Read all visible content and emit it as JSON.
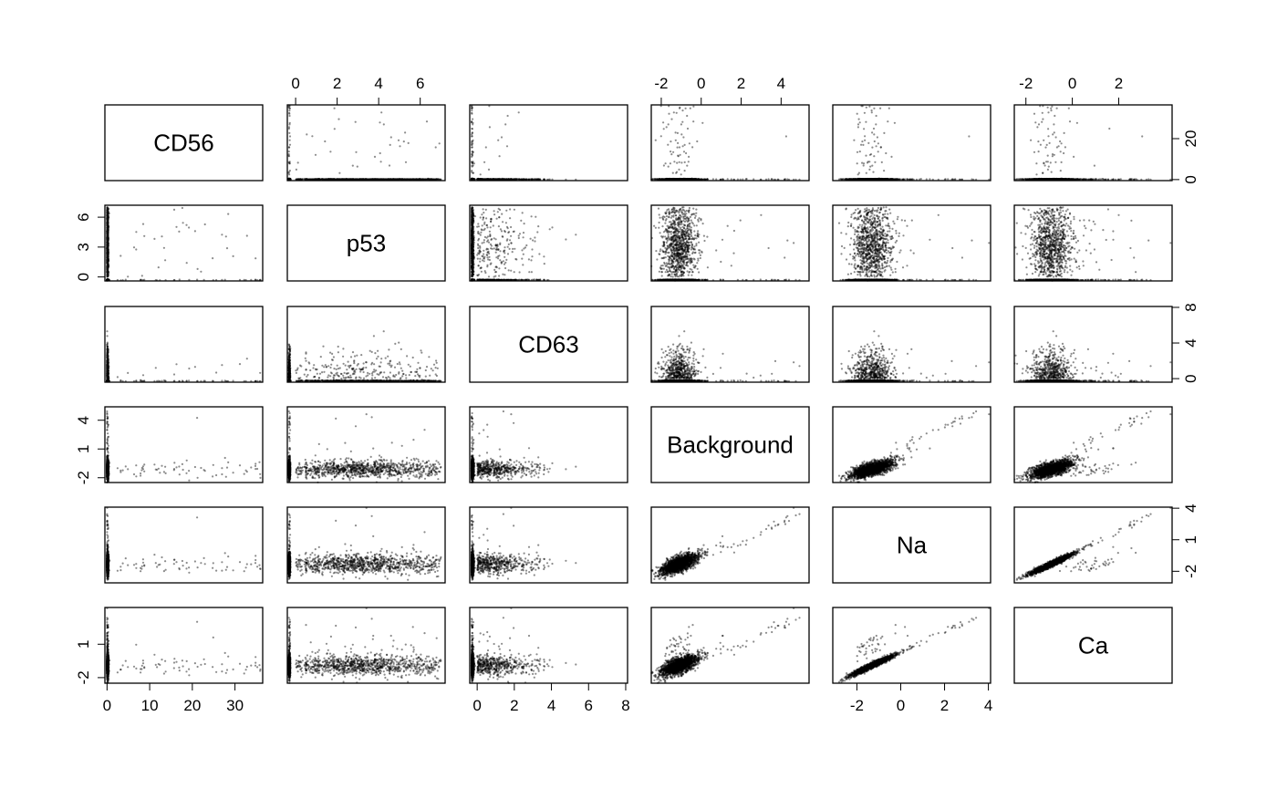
{
  "chart_data": {
    "type": "scatter",
    "subtype": "pairs-matrix",
    "variables": [
      "CD56",
      "p53",
      "CD63",
      "Background",
      "Na",
      "Ca"
    ],
    "axis_ranges": {
      "CD56": [
        -0.5,
        36.5
      ],
      "p53": [
        -0.4,
        7.2
      ],
      "CD63": [
        -0.4,
        8.1
      ],
      "Background": [
        -2.5,
        5.4
      ],
      "Na": [
        -3.1,
        4.1
      ],
      "Ca": [
        -2.5,
        4.3
      ]
    },
    "ticks": {
      "CD56": [
        0,
        10,
        20,
        30
      ],
      "p53": [
        0,
        2,
        4,
        6
      ],
      "CD63": [
        0,
        2,
        4,
        6,
        8
      ],
      "Background": [
        -2,
        0,
        2,
        4
      ],
      "Na": [
        -2,
        0,
        2,
        4
      ],
      "Ca": [
        -2,
        0,
        2
      ]
    },
    "y_ticks": {
      "CD56": [
        0,
        20
      ],
      "p53": [
        0,
        3,
        6
      ],
      "CD63": [
        0,
        4,
        8
      ],
      "Background": [
        -2,
        1,
        4
      ],
      "Na": [
        -2,
        1,
        4
      ],
      "Ca": [
        -2,
        1
      ]
    },
    "axis_label_side": {
      "bottom": [
        "CD56",
        "CD63",
        "Na"
      ],
      "top": [
        "p53",
        "Background",
        "Ca"
      ],
      "left": [
        "p53",
        "Background",
        "Ca"
      ],
      "right": [
        "CD56",
        "CD63",
        "Na"
      ]
    },
    "point_color": "#000000",
    "point_opacity": 0.45,
    "grid": false,
    "n_points_approx": 2000,
    "distributions": {
      "CD56": "mostly 0, sparse tail up to ~36",
      "p53": "large mass at ~-0.3, second cluster 1 to 6.5",
      "CD63": "large mass at ~-0.3, spread up to ~8",
      "Background": "centered near -1, tail to ~5",
      "Na": "centered near -1.3, tail to ~4",
      "Ca": "strongly correlated with Na (r≈0.95)"
    }
  }
}
